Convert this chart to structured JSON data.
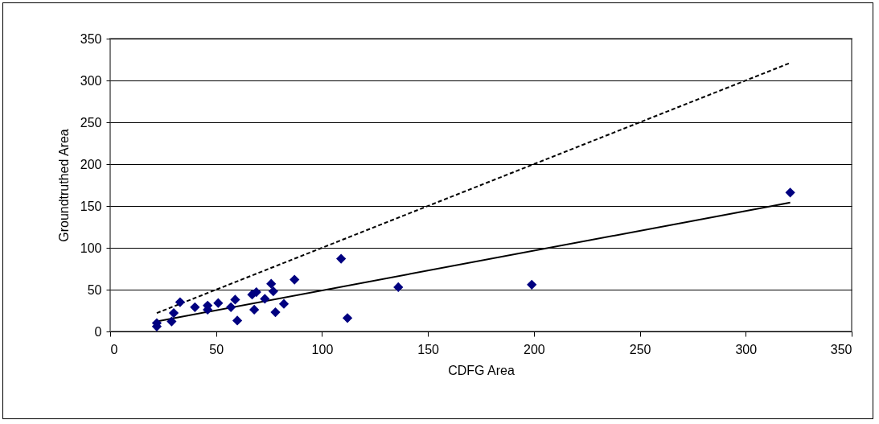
{
  "chart_data": {
    "type": "scatter",
    "xlabel": "CDFG Area",
    "ylabel": "Groundtruthed Area",
    "xlim": [
      0,
      350
    ],
    "xticks": [
      0,
      50,
      100,
      150,
      200,
      250,
      300,
      350
    ],
    "ylim": [
      0,
      350
    ],
    "yticks": [
      0,
      50,
      100,
      150,
      200,
      250,
      300,
      350
    ],
    "grid": "y",
    "series": [
      {
        "color": "#000080",
        "marker": "diamond",
        "x": [
          22,
          22,
          29,
          30,
          33,
          40,
          46,
          46,
          51,
          57,
          59,
          60,
          67,
          68,
          69,
          73,
          76,
          77,
          78,
          82,
          87,
          109,
          112,
          136,
          199,
          321
        ],
        "values": [
          10,
          6,
          12,
          22,
          35,
          29,
          31,
          26,
          34,
          29,
          38,
          13,
          44,
          26,
          47,
          39,
          57,
          48,
          23,
          33,
          62,
          87,
          16,
          53,
          56,
          166
        ]
      },
      {
        "type": "line",
        "marker": "none",
        "color": "#000000",
        "line_style": "solid",
        "x": [
          22,
          321
        ],
        "values": [
          12,
          154
        ]
      },
      {
        "type": "line",
        "marker": "none",
        "color": "#000000",
        "line_style": "dashed",
        "x": [
          22,
          321
        ],
        "values": [
          22,
          321
        ]
      }
    ]
  }
}
